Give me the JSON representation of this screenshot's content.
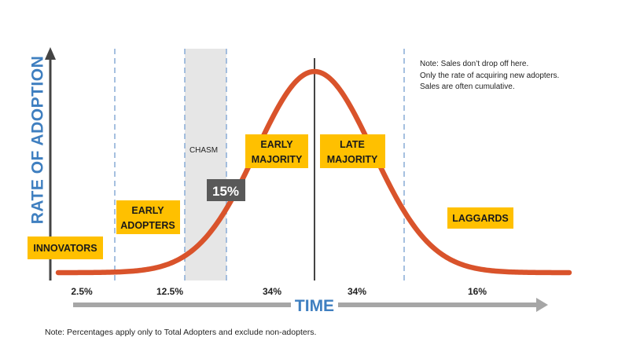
{
  "diagram": {
    "y_axis_label": "RATE OF ADOPTION",
    "x_axis_label": "TIME",
    "chasm_label": "CHASM",
    "chasm_percent": "15%",
    "segments": [
      {
        "id": "innovators",
        "lines": [
          "INNOVATORS"
        ],
        "share": "2.5%"
      },
      {
        "id": "early-adopters",
        "lines": [
          "EARLY",
          "ADOPTERS"
        ],
        "share": "12.5%"
      },
      {
        "id": "early-majority",
        "lines": [
          "EARLY",
          "MAJORITY"
        ],
        "share": "34%"
      },
      {
        "id": "late-majority",
        "lines": [
          "LATE",
          "MAJORITY"
        ],
        "share": "34%"
      },
      {
        "id": "laggards",
        "lines": [
          "LAGGARDS"
        ],
        "share": "16%"
      }
    ],
    "note_lines": [
      "Note: Sales don’t drop off here.",
      "Only the rate of acquiring new adopters.",
      "Sales are often cumulative."
    ],
    "footnote": "Note: Percentages apply only to Total Adopters and exclude non-adopters.",
    "colors": {
      "curve": "#d9532b",
      "label_box": "#ffc000",
      "axis_label": "#3f7fc0",
      "divider": "#8fb0d8",
      "chasm_band": "#e6e6e6",
      "chasm_badge": "#595959",
      "time_arrow": "#a6a6a6",
      "axis": "#444444"
    }
  }
}
